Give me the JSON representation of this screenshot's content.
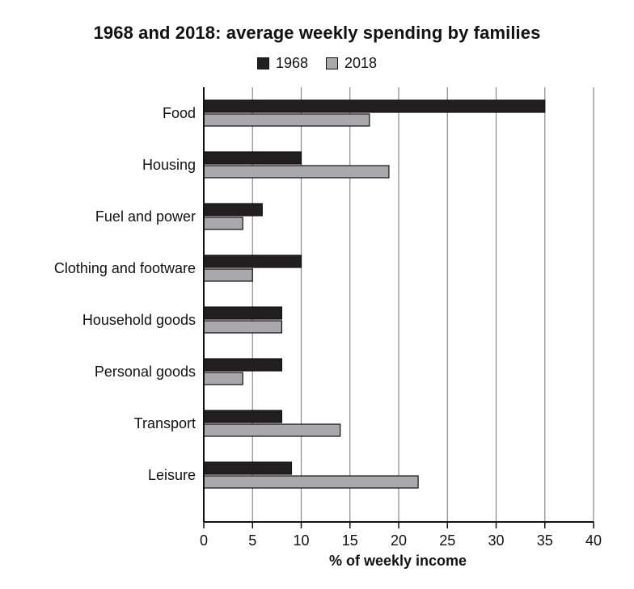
{
  "chart_data": {
    "type": "bar",
    "orientation": "horizontal",
    "title": "1968 and 2018: average weekly spending by families",
    "categories": [
      "Food",
      "Housing",
      "Fuel and power",
      "Clothing and footware",
      "Household goods",
      "Personal goods",
      "Transport",
      "Leisure"
    ],
    "series": [
      {
        "name": "1968",
        "color": "#231f20",
        "values": [
          35,
          10,
          6,
          10,
          8,
          8,
          8,
          9
        ]
      },
      {
        "name": "2018",
        "color": "#a7a9ac",
        "values": [
          17,
          19,
          4,
          5,
          8,
          4,
          14,
          22
        ]
      }
    ],
    "xlabel": "% of weekly income",
    "ylabel": "",
    "xlim": [
      0,
      40
    ],
    "xticks": [
      "0",
      "5",
      "10",
      "15",
      "20",
      "25",
      "30",
      "35",
      "40"
    ],
    "grid": "vertical",
    "legend_position": "top-center"
  }
}
